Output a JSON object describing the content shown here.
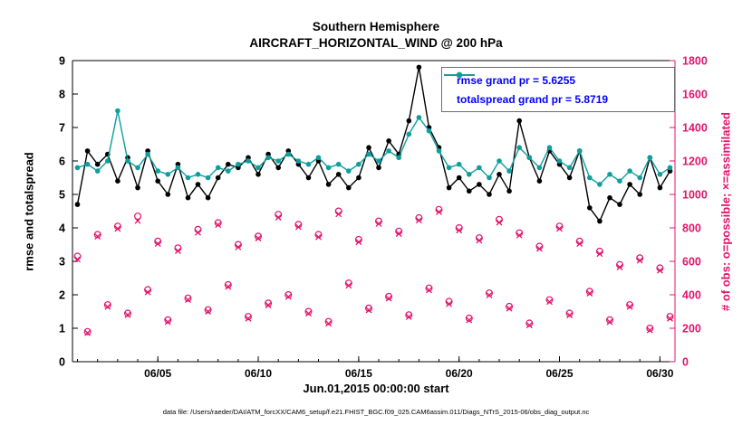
{
  "chart_data": {
    "type": "line",
    "title_line1": "Southern Hemisphere",
    "title_line2": "AIRCRAFT_HORIZONTAL_WIND @ 200 hPa",
    "xlabel": "Jun.01,2015 00:00:00 start",
    "ylabel_left": "rmse and totalspread",
    "ylabel_right": "# of obs: o=possible; ×=assimilated",
    "caption": "data file: /Users/raeder/DAI/ATM_forcXX/CAM6_setup/f.e21.FHIST_BGC.f09_025.CAM6assim.011/Diags_NTrS_2015-06/obs_diag_output.nc",
    "x_range_days": [
      0.75,
      30.75
    ],
    "ylim_left": [
      0,
      9
    ],
    "ylim_right": [
      0,
      1800
    ],
    "yticks_left": [
      0,
      1,
      2,
      3,
      4,
      5,
      6,
      7,
      8,
      9
    ],
    "yticks_right": [
      0,
      200,
      400,
      600,
      800,
      1000,
      1200,
      1400,
      1600,
      1800
    ],
    "xticks": [
      {
        "day": 5,
        "label": "06/05"
      },
      {
        "day": 10,
        "label": "06/10"
      },
      {
        "day": 15,
        "label": "06/15"
      },
      {
        "day": 20,
        "label": "06/20"
      },
      {
        "day": 25,
        "label": "06/25"
      },
      {
        "day": 30,
        "label": "06/30"
      }
    ],
    "x_days": [
      1,
      1.5,
      2,
      2.5,
      3,
      3.5,
      4,
      4.5,
      5,
      5.5,
      6,
      6.5,
      7,
      7.5,
      8,
      8.5,
      9,
      9.5,
      10,
      10.5,
      11,
      11.5,
      12,
      12.5,
      13,
      13.5,
      14,
      14.5,
      15,
      15.5,
      16,
      16.5,
      17,
      17.5,
      18,
      18.5,
      19,
      19.5,
      20,
      20.5,
      21,
      21.5,
      22,
      22.5,
      23,
      23.5,
      24,
      24.5,
      25,
      25.5,
      26,
      26.5,
      27,
      27.5,
      28,
      28.5,
      29,
      29.5,
      30,
      30.5
    ],
    "series": [
      {
        "name": "rmse",
        "legend": "rmse grand pr = 5.6255",
        "color": "#000000",
        "axis": "left",
        "values": [
          4.7,
          6.3,
          5.9,
          6.2,
          5.4,
          6.1,
          5.2,
          6.3,
          5.4,
          5.0,
          5.9,
          4.9,
          5.3,
          4.9,
          5.5,
          5.9,
          5.8,
          6.1,
          5.6,
          6.2,
          5.8,
          6.3,
          5.9,
          5.5,
          6.0,
          5.3,
          5.6,
          5.2,
          5.5,
          6.4,
          5.8,
          6.6,
          6.2,
          7.2,
          8.8,
          7.0,
          6.4,
          5.2,
          5.5,
          5.1,
          5.3,
          5.0,
          5.6,
          5.1,
          7.2,
          6.1,
          5.4,
          6.3,
          5.9,
          5.5,
          6.3,
          4.6,
          4.2,
          4.9,
          4.7,
          5.3,
          5.0,
          6.1,
          5.2,
          5.7
        ]
      },
      {
        "name": "totalspread",
        "legend": "totalspread grand pr = 5.8719",
        "color": "#0f9e9e",
        "axis": "left",
        "values": [
          5.8,
          5.9,
          5.7,
          6.0,
          7.5,
          6.0,
          5.8,
          6.2,
          5.7,
          5.6,
          5.8,
          5.5,
          5.6,
          5.5,
          5.8,
          5.7,
          5.9,
          6.0,
          5.8,
          6.1,
          6.0,
          6.2,
          6.0,
          5.9,
          6.1,
          5.8,
          5.9,
          5.7,
          5.9,
          6.2,
          6.0,
          6.3,
          6.1,
          6.8,
          7.3,
          6.9,
          6.3,
          5.8,
          5.9,
          5.6,
          5.8,
          5.5,
          6.0,
          5.7,
          6.4,
          6.1,
          5.8,
          6.4,
          6.0,
          5.8,
          6.3,
          5.5,
          5.3,
          5.6,
          5.4,
          5.7,
          5.5,
          6.1,
          5.6,
          5.8
        ]
      }
    ],
    "obs_series": [
      {
        "name": "possible",
        "marker": "o",
        "values": [
          630,
          180,
          760,
          340,
          810,
          290,
          870,
          430,
          720,
          250,
          680,
          380,
          790,
          310,
          830,
          460,
          700,
          270,
          750,
          350,
          880,
          400,
          820,
          300,
          760,
          240,
          900,
          470,
          730,
          320,
          840,
          390,
          780,
          280,
          860,
          440,
          910,
          360,
          800,
          260,
          740,
          410,
          850,
          330,
          770,
          230,
          690,
          370,
          810,
          290,
          720,
          420,
          660,
          250,
          580,
          340,
          620,
          200,
          560,
          270
        ]
      },
      {
        "name": "assimilated",
        "marker": "x",
        "values": [
          612,
          172,
          748,
          328,
          795,
          280,
          842,
          415,
          705,
          238,
          662,
          370,
          772,
          300,
          818,
          448,
          685,
          258,
          738,
          338,
          862,
          388,
          805,
          288,
          745,
          228,
          882,
          455,
          715,
          308,
          825,
          378,
          765,
          268,
          845,
          428,
          895,
          345,
          785,
          248,
          725,
          398,
          832,
          318,
          755,
          218,
          675,
          358,
          795,
          278,
          705,
          408,
          645,
          238,
          565,
          328,
          605,
          188,
          545,
          258
        ]
      }
    ],
    "colors": {
      "obs": "#e2146c",
      "legend_text": "#0000ff",
      "axis_black": "#000000"
    }
  }
}
